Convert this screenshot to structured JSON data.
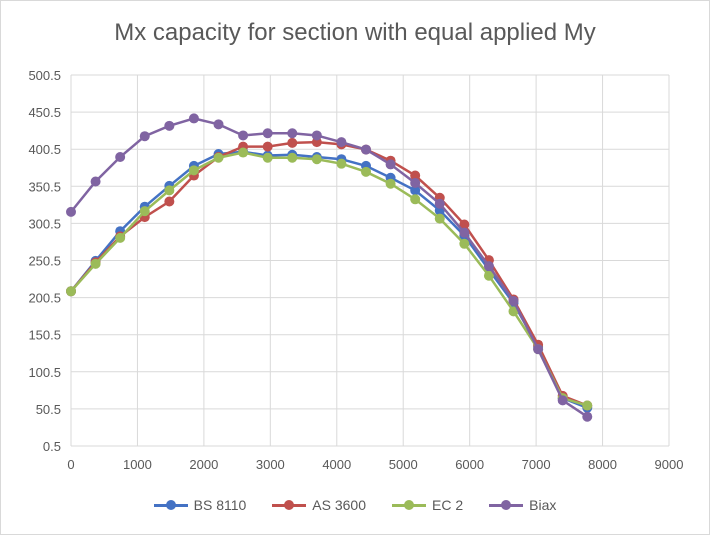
{
  "chart_data": {
    "type": "line",
    "title": "Mx capacity for section with equal applied My",
    "xlabel": "",
    "ylabel": "",
    "xlim": [
      0,
      9000
    ],
    "ylim": [
      0.5,
      500.5
    ],
    "xticks": [
      "0",
      "1000",
      "2000",
      "3000",
      "4000",
      "5000",
      "6000",
      "7000",
      "8000",
      "9000"
    ],
    "yticks": [
      "0.5",
      "50.5",
      "100.5",
      "150.5",
      "200.5",
      "250.5",
      "300.5",
      "350.5",
      "400.5",
      "450.5",
      "500.5"
    ],
    "grid": true,
    "legend_position": "bottom",
    "x": [
      0,
      370,
      740,
      1110,
      1480,
      1850,
      2220,
      2590,
      2960,
      3330,
      3700,
      4070,
      4440,
      4810,
      5180,
      5550,
      5920,
      6290,
      6660,
      7030,
      7400,
      7770
    ],
    "series": [
      {
        "name": "BS 8110",
        "color": "#4472c4",
        "values": [
          209,
          250,
          290,
          323,
          351,
          378,
          394,
          397,
          392,
          393,
          390,
          387,
          378,
          362,
          345,
          318,
          284,
          238,
          193,
          134,
          65,
          52
        ]
      },
      {
        "name": "AS 3600",
        "color": "#c0504d",
        "values": [
          209,
          248,
          283,
          309,
          330,
          365,
          390,
          404,
          404,
          409,
          410,
          407,
          400,
          385,
          365,
          335,
          299,
          251,
          198,
          137,
          68,
          55
        ]
      },
      {
        "name": "EC 2",
        "color": "#9bbb59",
        "values": [
          209,
          246,
          281,
          317,
          345,
          372,
          389,
          396,
          389,
          389,
          387,
          381,
          370,
          354,
          333,
          307,
          273,
          230,
          182,
          131,
          65,
          55
        ]
      },
      {
        "name": "Biax",
        "color": "#8064a2",
        "values": [
          316,
          357,
          390,
          418,
          432,
          442,
          434,
          419,
          422,
          422,
          419,
          410,
          400,
          380,
          355,
          327,
          288,
          243,
          196,
          131,
          62,
          40
        ]
      }
    ]
  }
}
